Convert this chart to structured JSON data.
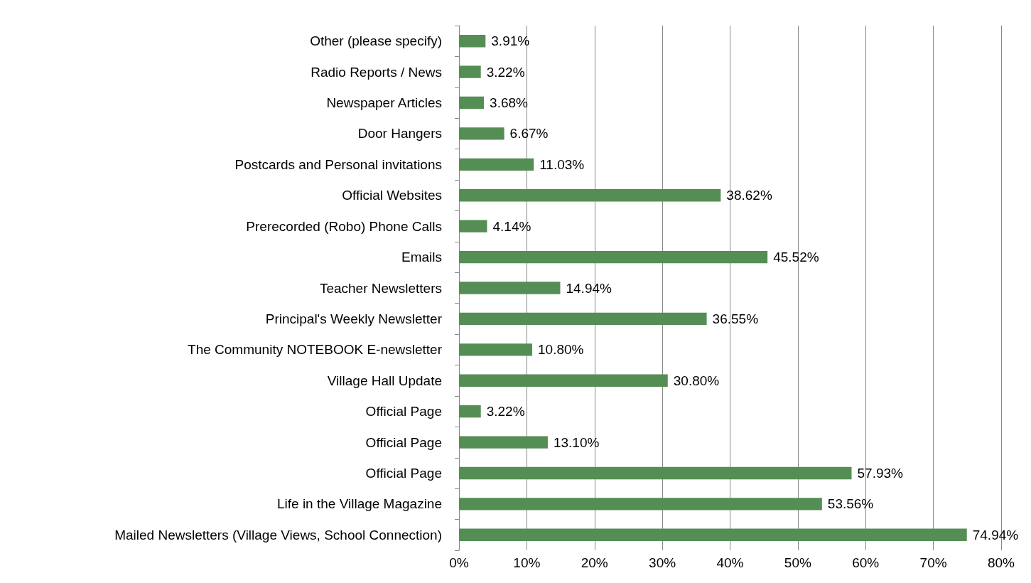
{
  "chart_data": {
    "type": "bar",
    "orientation": "horizontal",
    "categories": [
      "Other (please specify)",
      "Radio Reports / News",
      "Newspaper Articles",
      "Door Hangers",
      "Postcards and Personal invitations",
      "Official Websites",
      "Prerecorded (Robo) Phone Calls",
      "Emails",
      "Teacher Newsletters",
      "Principal's Weekly Newsletter",
      "The Community NOTEBOOK E-newsletter",
      "Village Hall Update",
      "Official Page",
      "Official Page",
      "Official Page",
      "Life in the Village Magazine",
      "Mailed Newsletters (Village Views, School Connection)"
    ],
    "values": [
      3.91,
      3.22,
      3.68,
      6.67,
      11.03,
      38.62,
      4.14,
      45.52,
      14.94,
      36.55,
      10.8,
      30.8,
      3.22,
      13.1,
      57.93,
      53.56,
      74.94
    ],
    "value_labels": [
      "3.91%",
      "3.22%",
      "3.68%",
      "6.67%",
      "11.03%",
      "38.62%",
      "4.14%",
      "45.52%",
      "14.94%",
      "36.55%",
      "10.80%",
      "30.80%",
      "3.22%",
      "13.10%",
      "57.93%",
      "53.56%",
      "74.94%"
    ],
    "color": "#558e55",
    "xlim": [
      0,
      80
    ],
    "xticks": [
      {
        "value": 0,
        "label": "0%"
      },
      {
        "value": 10,
        "label": "10%"
      },
      {
        "value": 20,
        "label": "20%"
      },
      {
        "value": 30,
        "label": "30%"
      },
      {
        "value": 40,
        "label": "40%"
      },
      {
        "value": 50,
        "label": "50%"
      },
      {
        "value": 60,
        "label": "60%"
      },
      {
        "value": 70,
        "label": "70%"
      },
      {
        "value": 80,
        "label": "80%"
      }
    ],
    "grid": "x"
  }
}
